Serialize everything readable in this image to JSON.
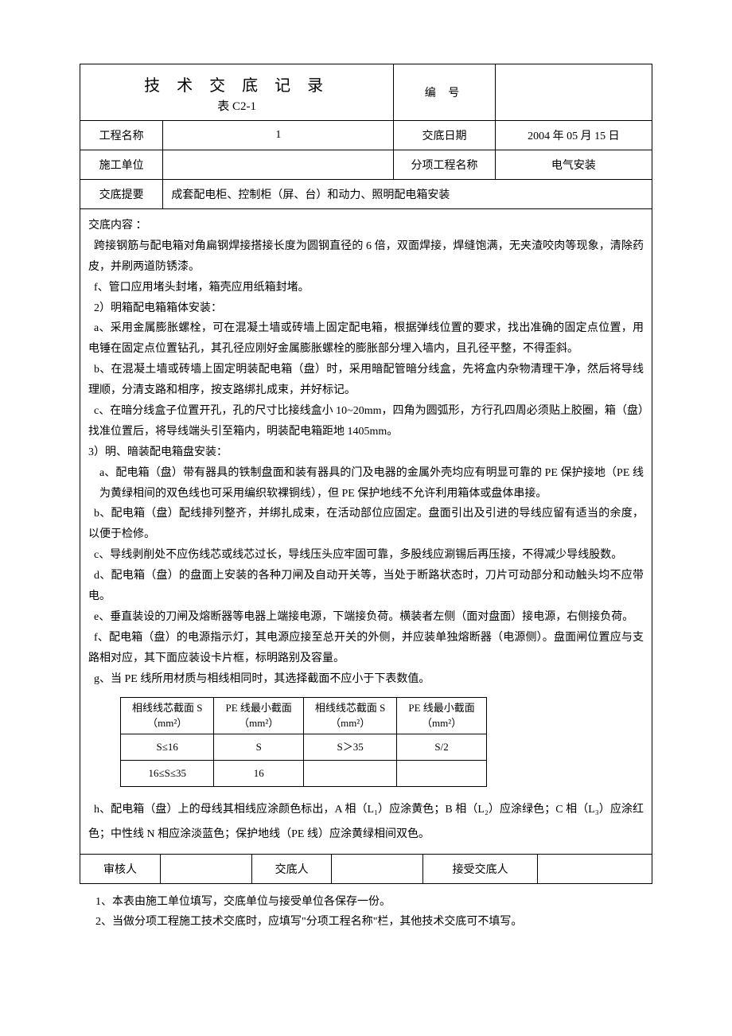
{
  "header": {
    "title": "技 术 交 底 记 录",
    "subtitle": "表 C2-1",
    "num_label": "编 号",
    "num_value": ""
  },
  "rows": {
    "proj_name_label": "工程名称",
    "proj_name_value": "1",
    "date_label": "交底日期",
    "date_value": "2004 年 05 月 15 日",
    "unit_label": "施工单位",
    "unit_value": "",
    "subproj_label": "分项工程名称",
    "subproj_value": "电气安装",
    "summary_label": "交底提要",
    "summary_value": "成套配电柜、控制柜（屏、台）和动力、照明配电箱安装"
  },
  "content": {
    "heading": "交底内容 ：",
    "p1": "跨接钢筋与配电箱对角扁钢焊接搭接长度为圆钢直径的 6 倍，双面焊接，焊缝饱满，无夹渣咬肉等现象，清除药皮，并刷两道防锈漆。",
    "p2": "f、管口应用堵头封堵，箱壳应用纸箱封堵。",
    "p3": "2）明箱配电箱箱体安装：",
    "p4": "a、采用金属膨胀螺栓，可在混凝土墙或砖墙上固定配电箱，根据弹线位置的要求，找出准确的固定点位置，用电锤在固定点位置钻孔，其孔径应刚好金属膨胀螺栓的膨胀部分埋入墙内，且孔径平整，不得歪斜。",
    "p5": "b、在混凝土墙或砖墙上固定明装配电箱（盘）时，采用暗配管暗分线盒，先将盒内杂物清理干净，然后将导线理顺，分清支路和相序，按支路绑扎成束，并好标记。",
    "p6": "c、在暗分线盒子位置开孔，孔的尺寸比接线盒小 10~20mm，四角为圆弧形，方行孔四周必须贴上胶圈，箱（盘）找准位置后，将导线端头引至箱内，明装配电箱距地 1405mm。",
    "p7": "3）明、暗装配电箱盘安装：",
    "p8": "a、配电箱（盘）带有器具的铁制盘面和装有器具的门及电器的金属外壳均应有明显可靠的 PE 保护接地（PE 线为黄绿相间的双色线也可采用编织软裸铜线），但 PE 保护地线不允许利用箱体或盘体串接。",
    "p9": "b、配电箱（盘）配线排列整齐，并绑扎成束，在活动部位应固定。盘面引出及引进的导线应留有适当的余度，以便于检修。",
    "p10": "c、导线剥削处不应伤线芯或线芯过长，导线压头应牢固可靠，多股线应涮锡后再压接，不得减少导线股数。",
    "p11": "d、配电箱（盘）的盘面上安装的各种刀闸及自动开关等，当处于断路状态时，刀片可动部分和动触头均不应带电。",
    "p12": "e、垂直装设的刀闸及熔断器等电器上端接电源，下端接负荷。横装者左侧（面对盘面）接电源，右侧接负荷。",
    "p13": "f、配电箱（盘）的电源指示灯，其电源应接至总开关的外侧，并应装单独熔断器（电源侧）。盘面闸位置应与支路相对应，其下面应装设卡片框，标明路别及容量。",
    "p14": "g、当 PE 线所用材质与相线相同时，其选择截面不应小于下表数值。",
    "p15": "h、配电箱（盘）上的母线其相线应涂颜色标出，A 相（L₁）应涂黄色；B 相（L₂）应涂绿色；C 相（L₃）应涂红色；中性线 N 相应涂淡蓝色；保护地线（PE 线）应涂黄绿相间双色。"
  },
  "inner_table": {
    "headers": [
      "相线线芯截面 S\n（mm²）",
      "PE 线最小截面\n（mm²）",
      "相线线芯截面 S\n（mm²）",
      "PE 线最小截面\n（mm²）"
    ],
    "rows": [
      [
        "S≤16",
        "S",
        "S＞35",
        "S/2"
      ],
      [
        "16≤S≤35",
        "16",
        "",
        ""
      ]
    ]
  },
  "sign": {
    "reviewer_label": "审核人",
    "reviewer_value": "",
    "deliverer_label": "交底人",
    "deliverer_value": "",
    "receiver_label": "接受交底人",
    "receiver_value": ""
  },
  "footnotes": {
    "f1": "1、本表由施工单位填写，交底单位与接受单位各保存一份。",
    "f2": "2、当做分项工程施工技术交底时，应填写\"分项工程名称\"栏，其他技术交底可不填写。"
  },
  "style": {
    "background_color": "#ffffff",
    "text_color": "#000000",
    "border_color": "#000000",
    "title_fontsize": 20,
    "body_fontsize": 14,
    "inner_table_fontsize": 13,
    "line_height": 1.85
  }
}
